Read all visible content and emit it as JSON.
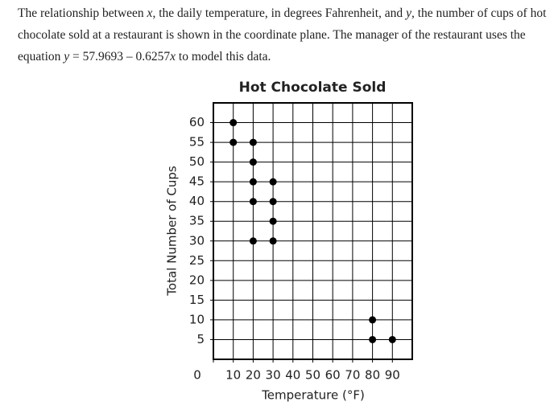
{
  "intro": [
    "The relationship between ",
    "x",
    ", the daily temperature, in degrees Fahrenheit, and ",
    "y",
    ", the number of cups of hot chocolate sold at a restaurant is shown in the coordinate plane. The manager of the restaurant uses the equation ",
    "y",
    " = 57.9693 – 0.6257",
    "x",
    " to model this data."
  ],
  "chart_data": {
    "type": "scatter",
    "title": "Hot Chocolate Sold",
    "x_label": "Temperature (°F)",
    "y_label": "Total Number of Cups",
    "x": [
      10,
      10,
      20,
      20,
      20,
      20,
      20,
      30,
      30,
      30,
      30,
      80,
      80,
      90
    ],
    "values": [
      60,
      55,
      55,
      50,
      45,
      40,
      30,
      45,
      40,
      35,
      30,
      10,
      5,
      5
    ],
    "color": "#000000",
    "xlim": [
      0,
      100
    ],
    "ylim": [
      0,
      65
    ],
    "xticks": [
      0,
      10,
      20,
      30,
      40,
      50,
      60,
      70,
      80,
      90
    ],
    "yticks": [
      5,
      10,
      15,
      20,
      25,
      30,
      35,
      40,
      45,
      50,
      55,
      60
    ],
    "grid": true
  }
}
